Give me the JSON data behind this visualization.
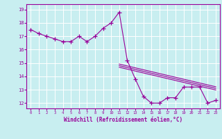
{
  "xlabel": "Windchill (Refroidissement éolien,°C)",
  "bg_color": "#c8eef0",
  "line_color": "#990099",
  "grid_color": "#ffffff",
  "hours": [
    0,
    1,
    2,
    3,
    4,
    5,
    6,
    7,
    8,
    9,
    10,
    11,
    12,
    13,
    14,
    15,
    16,
    17,
    18,
    19,
    20,
    21,
    22,
    23
  ],
  "temp": [
    17.5,
    17.2,
    17.0,
    16.8,
    16.6,
    16.6,
    17.0,
    16.6,
    17.0,
    17.6,
    18.0,
    18.8,
    15.2,
    13.8,
    12.5,
    12.0,
    12.0,
    12.4,
    12.4,
    13.2,
    13.2,
    13.2,
    12.0,
    12.2
  ],
  "trend_x": [
    11,
    23
  ],
  "trend_y": [
    14.8,
    13.1
  ],
  "trend_offsets": [
    -0.12,
    0.0,
    0.12
  ],
  "ylim": [
    11.6,
    19.4
  ],
  "xlim": [
    -0.5,
    23.5
  ],
  "yticks": [
    12,
    13,
    14,
    15,
    16,
    17,
    18,
    19
  ]
}
